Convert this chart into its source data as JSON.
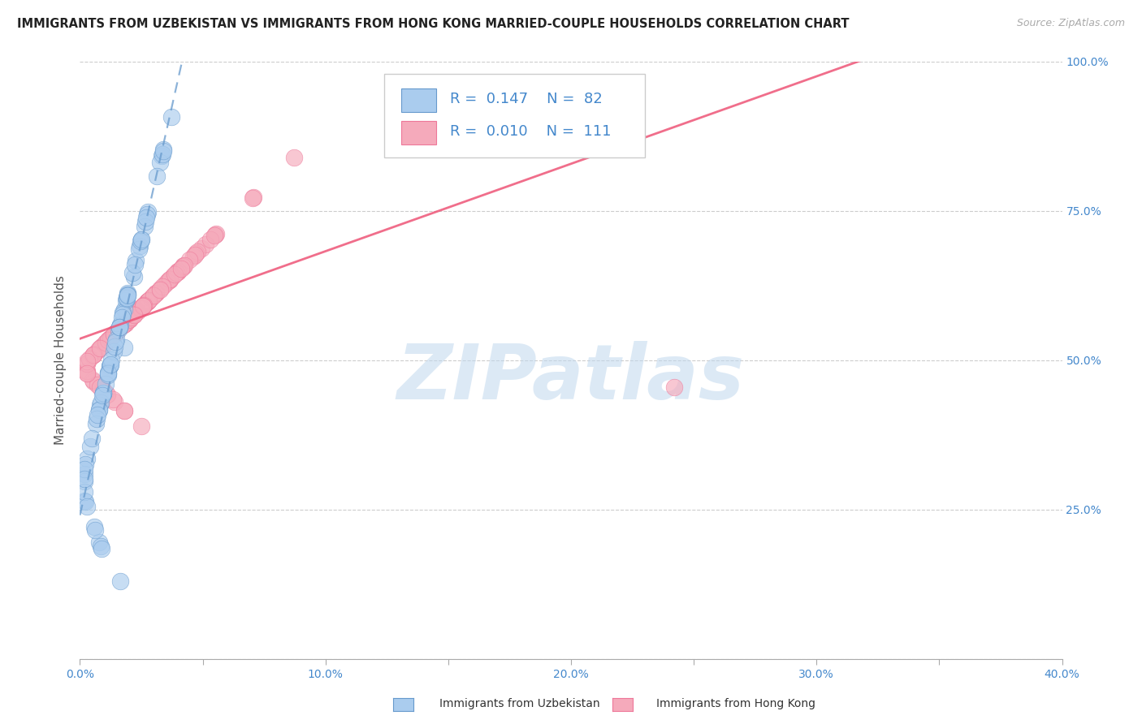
{
  "title": "IMMIGRANTS FROM UZBEKISTAN VS IMMIGRANTS FROM HONG KONG MARRIED-COUPLE HOUSEHOLDS CORRELATION CHART",
  "source": "Source: ZipAtlas.com",
  "ylabel": "Married-couple Households",
  "xmin": 0.0,
  "xmax": 0.4,
  "ymin": 0.0,
  "ymax": 1.0,
  "xtick_vals": [
    0.0,
    0.05,
    0.1,
    0.15,
    0.2,
    0.25,
    0.3,
    0.35,
    0.4
  ],
  "xtick_labels": [
    "0.0%",
    "",
    "10.0%",
    "",
    "20.0%",
    "",
    "30.0%",
    "",
    "40.0%"
  ],
  "ytick_vals": [
    0.0,
    0.25,
    0.5,
    0.75,
    1.0
  ],
  "ytick_labels_right": [
    "",
    "25.0%",
    "50.0%",
    "75.0%",
    "100.0%"
  ],
  "legend_R1": "0.147",
  "legend_N1": "82",
  "legend_R2": "0.010",
  "legend_N2": "111",
  "color_uzbekistan": "#aaccee",
  "color_hongkong": "#f5aabb",
  "edge_uzbekistan": "#6699cc",
  "edge_hongkong": "#ee7799",
  "trend_uzbekistan_color": "#6699cc",
  "trend_hongkong_color": "#ee5577",
  "watermark_text": "ZIPatlas",
  "watermark_color": "#c0d8ee",
  "grid_color": "#cccccc",
  "background_color": "#ffffff",
  "title_color": "#222222",
  "source_color": "#aaaaaa",
  "axis_tick_color": "#4488cc",
  "label_color": "#555555",
  "title_fontsize": 10.5,
  "tick_fontsize": 10,
  "label_fontsize": 11,
  "legend_fontsize": 13,
  "bottom_legend_label1": "Immigrants from Uzbekistan",
  "bottom_legend_label2": "Immigrants from Hong Kong",
  "dot_size": 220,
  "dot_alpha": 0.65
}
